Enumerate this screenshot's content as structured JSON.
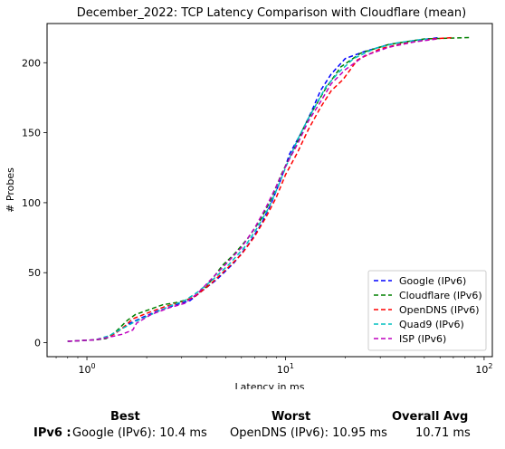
{
  "chart_data": {
    "type": "line",
    "title": "December_2022: TCP Latency Comparison with Cloudflare (mean)",
    "xlabel": "Latency in ms",
    "ylabel": "# Probes",
    "xscale": "log",
    "xlim": [
      0.63,
      110
    ],
    "ylim": [
      -10,
      228
    ],
    "xticks": [
      1,
      10,
      100
    ],
    "xtick_labels": [
      "10^0",
      "10^1",
      "10^2"
    ],
    "yticks": [
      0,
      50,
      100,
      150,
      200
    ],
    "ytick_labels": [
      "0",
      "50",
      "100",
      "150",
      "200"
    ],
    "grid": false,
    "legend_position": "lower-right",
    "series": [
      {
        "name": "Google (IPv6)",
        "color": "#0000ff",
        "x": [
          0.8,
          1.1,
          1.25,
          1.4,
          1.6,
          1.9,
          2.3,
          2.8,
          3.3,
          3.8,
          4.5,
          5.5,
          6.5,
          7.5,
          8.5,
          9.5,
          10.5,
          12,
          13.5,
          15,
          17,
          20,
          25,
          33,
          45,
          60
        ],
        "y": [
          1,
          2,
          3,
          7,
          13,
          18,
          23,
          27,
          30,
          37,
          45,
          57,
          70,
          84,
          100,
          117,
          135,
          150,
          165,
          180,
          192,
          203,
          208,
          213,
          216,
          218
        ]
      },
      {
        "name": "Cloudflare (IPv6)",
        "color": "#008000",
        "x": [
          0.8,
          1.1,
          1.25,
          1.4,
          1.6,
          1.75,
          2.0,
          2.4,
          2.9,
          3.4,
          4.0,
          4.8,
          5.5,
          6.5,
          7.5,
          8.5,
          9.5,
          11,
          12.5,
          14,
          16,
          19,
          24,
          33,
          50,
          85
        ],
        "y": [
          1,
          2,
          3,
          8,
          16,
          20,
          23,
          27,
          29,
          32,
          40,
          55,
          63,
          75,
          88,
          103,
          120,
          138,
          155,
          168,
          182,
          197,
          207,
          213,
          217,
          218
        ]
      },
      {
        "name": "OpenDNS (IPv6)",
        "color": "#ff0000",
        "x": [
          0.8,
          1.1,
          1.3,
          1.5,
          1.7,
          2.0,
          2.5,
          3.0,
          3.5,
          4.2,
          5.0,
          6.0,
          7.0,
          8.0,
          9.0,
          10.0,
          11.5,
          13.0,
          15.0,
          17.0,
          19.5,
          23,
          30,
          40,
          55,
          70
        ],
        "y": [
          1,
          2,
          4,
          10,
          17,
          21,
          26,
          29,
          33,
          42,
          52,
          63,
          76,
          90,
          104,
          120,
          136,
          152,
          168,
          180,
          188,
          202,
          210,
          214,
          217,
          218
        ]
      },
      {
        "name": "Quad9 (IPv6)",
        "color": "#00bfbf",
        "x": [
          0.8,
          1.1,
          1.3,
          1.5,
          1.75,
          2.1,
          2.6,
          3.1,
          3.6,
          4.3,
          5.2,
          6.2,
          7.2,
          8.2,
          9.2,
          10.2,
          11.5,
          13,
          14.5,
          16,
          18.5,
          22,
          28,
          36,
          45,
          52
        ],
        "y": [
          1,
          2,
          5,
          10,
          15,
          20,
          26,
          30,
          36,
          45,
          56,
          68,
          82,
          96,
          112,
          128,
          145,
          160,
          172,
          183,
          193,
          203,
          210,
          214,
          216,
          217
        ]
      },
      {
        "name": "ISP (IPv6)",
        "color": "#bf00bf",
        "x": [
          0.8,
          1.1,
          1.3,
          1.5,
          1.7,
          1.78,
          2.1,
          2.6,
          3.1,
          3.6,
          4.2,
          5.0,
          6.0,
          7.0,
          8.0,
          9.0,
          10.0,
          11.5,
          13,
          15,
          17,
          20,
          25,
          33,
          45,
          58
        ],
        "y": [
          1,
          2,
          4,
          6,
          9,
          14,
          20,
          25,
          28,
          35,
          45,
          56,
          68,
          82,
          97,
          112,
          126,
          142,
          158,
          172,
          185,
          195,
          205,
          211,
          215,
          217
        ]
      }
    ]
  },
  "summary": {
    "best_header": "Best",
    "worst_header": "Worst",
    "avg_header": "Overall Avg",
    "row_label": "IPv6 :",
    "best_value": "Google (IPv6): 10.4 ms",
    "worst_value": "OpenDNS (IPv6): 10.95 ms",
    "avg_value": "10.71 ms"
  }
}
